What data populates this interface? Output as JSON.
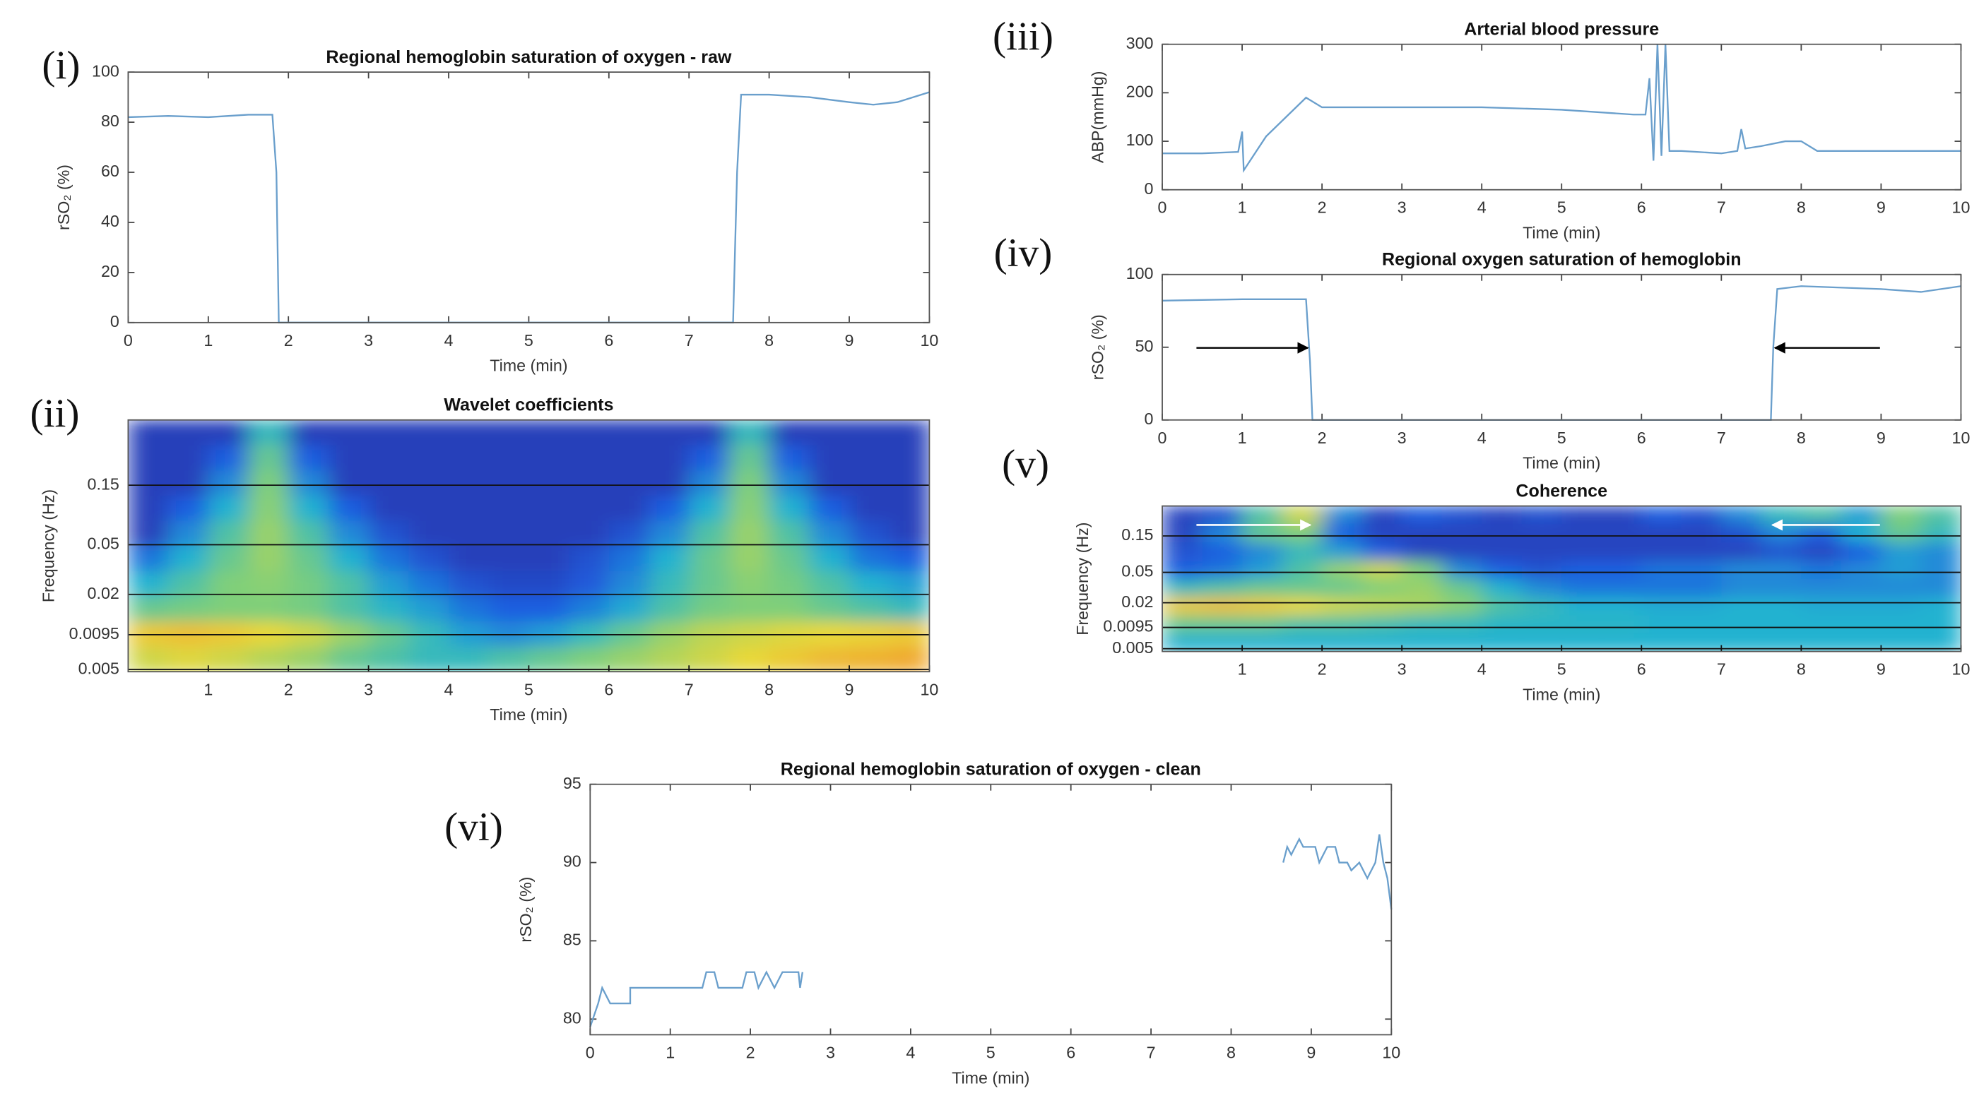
{
  "chart_data": [
    {
      "type": "line",
      "panel_label": "(i)",
      "title": "Regional hemoglobin saturation of oxygen - raw",
      "xlabel": "Time (min)",
      "ylabel": "rSO₂ (%)",
      "x": [
        0,
        0.5,
        1,
        1.5,
        1.8,
        1.85,
        1.88,
        2,
        3,
        4,
        5,
        6,
        7,
        7.55,
        7.6,
        7.65,
        8,
        8.5,
        9,
        9.3,
        9.6,
        10
      ],
      "values": [
        82,
        82.5,
        82,
        83,
        83,
        60,
        0,
        0,
        0,
        0,
        0,
        0,
        0,
        0,
        60,
        91,
        91,
        90,
        88,
        87,
        88,
        92
      ],
      "color": "#6a9fcc",
      "xlim": [
        0,
        10
      ],
      "xticks": [
        0,
        1,
        2,
        3,
        4,
        5,
        6,
        7,
        8,
        9,
        10
      ],
      "ylim": [
        0,
        100
      ],
      "yticks": [
        0,
        20,
        40,
        60,
        80,
        100
      ],
      "grid": false
    },
    {
      "type": "heatmap",
      "panel_label": "(ii)",
      "title": "Wavelet coefficients",
      "xlabel": "Time (min)",
      "ylabel": "Frequency (Hz)",
      "log_y": true,
      "xlim": [
        0,
        10
      ],
      "xticks": [
        1,
        2,
        3,
        4,
        5,
        6,
        7,
        8,
        9,
        10
      ],
      "ylim": [
        0.0048,
        0.5
      ],
      "yticks": [
        0.005,
        0.0095,
        0.02,
        0.05,
        0.15
      ],
      "grid": true,
      "colormap": [
        "#2c2aa0",
        "#1f5fe0",
        "#20b2d0",
        "#7fcf7a",
        "#e8d838",
        "#f29a30"
      ],
      "z": [
        [
          0.08,
          0.08,
          0.08,
          0.45,
          0.08,
          0.08,
          0.08,
          0.08,
          0.08,
          0.08,
          0.08,
          0.08,
          0.08,
          0.08,
          0.08,
          0.45,
          0.08,
          0.08,
          0.08,
          0.08
        ],
        [
          0.08,
          0.08,
          0.2,
          0.55,
          0.2,
          0.08,
          0.08,
          0.08,
          0.08,
          0.08,
          0.08,
          0.08,
          0.08,
          0.08,
          0.2,
          0.55,
          0.2,
          0.08,
          0.08,
          0.08
        ],
        [
          0.08,
          0.08,
          0.3,
          0.6,
          0.3,
          0.08,
          0.08,
          0.08,
          0.08,
          0.08,
          0.08,
          0.08,
          0.08,
          0.08,
          0.3,
          0.6,
          0.3,
          0.08,
          0.08,
          0.08
        ],
        [
          0.08,
          0.2,
          0.4,
          0.62,
          0.4,
          0.2,
          0.08,
          0.08,
          0.08,
          0.08,
          0.08,
          0.08,
          0.08,
          0.2,
          0.4,
          0.62,
          0.4,
          0.2,
          0.08,
          0.08
        ],
        [
          0.08,
          0.3,
          0.5,
          0.65,
          0.5,
          0.3,
          0.15,
          0.08,
          0.08,
          0.08,
          0.08,
          0.08,
          0.15,
          0.3,
          0.5,
          0.65,
          0.5,
          0.3,
          0.15,
          0.08
        ],
        [
          0.25,
          0.4,
          0.55,
          0.65,
          0.55,
          0.4,
          0.25,
          0.15,
          0.08,
          0.08,
          0.08,
          0.15,
          0.25,
          0.4,
          0.55,
          0.65,
          0.55,
          0.4,
          0.25,
          0.2
        ],
        [
          0.4,
          0.5,
          0.6,
          0.62,
          0.58,
          0.5,
          0.35,
          0.25,
          0.15,
          0.12,
          0.12,
          0.18,
          0.3,
          0.45,
          0.55,
          0.62,
          0.58,
          0.5,
          0.4,
          0.35
        ],
        [
          0.55,
          0.58,
          0.6,
          0.6,
          0.58,
          0.5,
          0.42,
          0.35,
          0.25,
          0.2,
          0.2,
          0.28,
          0.38,
          0.5,
          0.58,
          0.6,
          0.6,
          0.55,
          0.5,
          0.45
        ],
        [
          0.85,
          0.88,
          0.85,
          0.8,
          0.75,
          0.65,
          0.55,
          0.45,
          0.35,
          0.3,
          0.35,
          0.45,
          0.55,
          0.65,
          0.72,
          0.75,
          0.78,
          0.8,
          0.82,
          0.85
        ],
        [
          0.75,
          0.78,
          0.75,
          0.7,
          0.65,
          0.55,
          0.5,
          0.45,
          0.45,
          0.5,
          0.55,
          0.6,
          0.65,
          0.7,
          0.75,
          0.8,
          0.85,
          0.9,
          0.92,
          0.95
        ]
      ]
    },
    {
      "type": "line",
      "panel_label": "(iii)",
      "title": "Arterial blood pressure",
      "xlabel": "Time (min)",
      "ylabel": "ABP(mmHg)",
      "x": [
        0,
        0.5,
        0.95,
        1,
        1.02,
        1.3,
        1.8,
        2,
        3,
        4,
        5,
        5.9,
        6.05,
        6.1,
        6.15,
        6.2,
        6.25,
        6.3,
        6.35,
        6.5,
        7,
        7.2,
        7.25,
        7.3,
        7.5,
        7.8,
        8,
        8.2,
        9,
        10
      ],
      "values": [
        75,
        75,
        78,
        120,
        40,
        110,
        190,
        170,
        170,
        170,
        165,
        155,
        155,
        230,
        60,
        300,
        70,
        300,
        80,
        80,
        75,
        80,
        125,
        85,
        90,
        100,
        100,
        80,
        80,
        80
      ],
      "color": "#6a9fcc",
      "xlim": [
        0,
        10
      ],
      "xticks": [
        0,
        1,
        2,
        3,
        4,
        5,
        6,
        7,
        8,
        9,
        10
      ],
      "ylim": [
        0,
        300
      ],
      "yticks": [
        0,
        100,
        200,
        300
      ],
      "grid": false
    },
    {
      "type": "line",
      "panel_label": "(iv)",
      "title": "Regional oxygen saturation of hemoglobin",
      "xlabel": "Time (min)",
      "ylabel": "rSO₂ (%)",
      "x": [
        0,
        1,
        1.8,
        1.85,
        1.88,
        2,
        7,
        7.62,
        7.65,
        7.7,
        8,
        9,
        9.5,
        10
      ],
      "values": [
        82,
        83,
        83,
        40,
        0,
        0,
        0,
        0,
        50,
        90,
        92,
        90,
        88,
        92
      ],
      "color": "#6a9fcc",
      "xlim": [
        0,
        10
      ],
      "xticks": [
        0,
        1,
        2,
        3,
        4,
        5,
        6,
        7,
        8,
        9,
        10
      ],
      "ylim": [
        0,
        100
      ],
      "yticks": [
        0,
        50,
        100
      ],
      "grid": false
    },
    {
      "type": "heatmap",
      "panel_label": "(v)",
      "title": "Coherence",
      "xlabel": "Time (min)",
      "ylabel": "Frequency (Hz)",
      "log_y": true,
      "xlim": [
        0,
        10
      ],
      "xticks": [
        1,
        2,
        3,
        4,
        5,
        6,
        7,
        8,
        9,
        10
      ],
      "ylim": [
        0.0046,
        0.37
      ],
      "yticks": [
        0.005,
        0.0095,
        0.02,
        0.05,
        0.15
      ],
      "grid": true,
      "colormap": [
        "#2c2aa0",
        "#1f5fe0",
        "#20b2d0",
        "#7fcf7a",
        "#e8d838",
        "#f29a30"
      ],
      "z": [
        [
          0.1,
          0.15,
          0.5,
          0.75,
          0.3,
          0.1,
          0.2,
          0.15,
          0.1,
          0.15,
          0.1,
          0.1,
          0.2,
          0.15,
          0.3,
          0.45,
          0.5,
          0.35,
          0.6,
          0.5
        ],
        [
          0.1,
          0.3,
          0.55,
          0.6,
          0.2,
          0.1,
          0.1,
          0.1,
          0.1,
          0.1,
          0.1,
          0.1,
          0.1,
          0.1,
          0.15,
          0.3,
          0.2,
          0.4,
          0.55,
          0.45
        ],
        [
          0.15,
          0.2,
          0.3,
          0.45,
          0.35,
          0.2,
          0.1,
          0.1,
          0.1,
          0.1,
          0.1,
          0.1,
          0.1,
          0.1,
          0.1,
          0.15,
          0.1,
          0.2,
          0.35,
          0.3
        ],
        [
          0.2,
          0.25,
          0.35,
          0.5,
          0.65,
          0.75,
          0.6,
          0.3,
          0.2,
          0.15,
          0.2,
          0.2,
          0.25,
          0.25,
          0.3,
          0.3,
          0.25,
          0.3,
          0.35,
          0.3
        ],
        [
          0.45,
          0.5,
          0.55,
          0.55,
          0.55,
          0.6,
          0.65,
          0.55,
          0.4,
          0.3,
          0.25,
          0.25,
          0.25,
          0.25,
          0.3,
          0.3,
          0.3,
          0.3,
          0.3,
          0.3
        ],
        [
          0.85,
          0.88,
          0.85,
          0.8,
          0.75,
          0.72,
          0.68,
          0.62,
          0.5,
          0.45,
          0.4,
          0.4,
          0.38,
          0.38,
          0.4,
          0.4,
          0.38,
          0.38,
          0.38,
          0.4
        ],
        [
          0.55,
          0.55,
          0.55,
          0.5,
          0.5,
          0.48,
          0.45,
          0.45,
          0.42,
          0.42,
          0.42,
          0.42,
          0.4,
          0.4,
          0.4,
          0.4,
          0.4,
          0.4,
          0.4,
          0.4
        ],
        [
          0.4,
          0.4,
          0.4,
          0.4,
          0.4,
          0.4,
          0.4,
          0.4,
          0.4,
          0.4,
          0.4,
          0.4,
          0.4,
          0.4,
          0.4,
          0.4,
          0.4,
          0.4,
          0.4,
          0.4
        ]
      ]
    },
    {
      "type": "line",
      "panel_label": "(vi)",
      "title": "Regional hemoglobin saturation of oxygen - clean",
      "xlabel": "Time (min)",
      "ylabel": "rSO₂ (%)",
      "x": [
        0,
        0.1,
        0.15,
        0.25,
        0.5,
        0.5,
        1.4,
        1.45,
        1.55,
        1.6,
        1.9,
        1.95,
        2.05,
        2.1,
        2.2,
        2.3,
        2.4,
        2.6,
        2.62,
        2.65,
        5,
        8.65,
        8.7,
        8.75,
        8.85,
        8.9,
        9.05,
        9.1,
        9.2,
        9.3,
        9.35,
        9.45,
        9.5,
        9.6,
        9.7,
        9.8,
        9.85,
        9.9,
        9.95,
        10
      ],
      "values": [
        79.5,
        81,
        82,
        81,
        81,
        82,
        82,
        83,
        83,
        82,
        82,
        83,
        83,
        82,
        83,
        82,
        83,
        83,
        82,
        83,
        null,
        90,
        91,
        90.5,
        91.5,
        91,
        91,
        90,
        91,
        91,
        90,
        90,
        89.5,
        90,
        89,
        90,
        91.8,
        90,
        89,
        87
      ],
      "color": "#6a9fcc",
      "xlim": [
        0,
        10
      ],
      "xticks": [
        0,
        1,
        2,
        3,
        4,
        5,
        6,
        7,
        8,
        9,
        10
      ],
      "ylim": [
        79,
        95
      ],
      "yticks": [
        80,
        85,
        90,
        95
      ],
      "grid": false
    }
  ]
}
